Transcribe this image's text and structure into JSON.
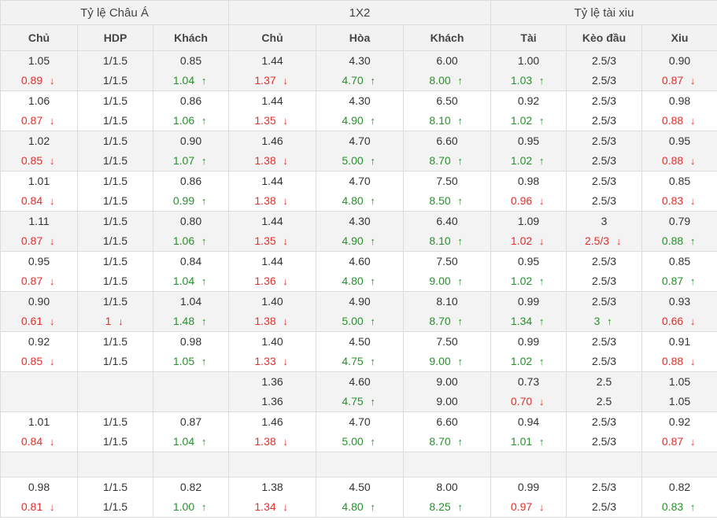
{
  "groups": [
    {
      "label": "Tỷ lệ Châu Á",
      "span": 3
    },
    {
      "label": "1X2",
      "span": 3
    },
    {
      "label": "Tỷ lệ tài xiu",
      "span": 3
    }
  ],
  "columns": [
    "Chủ",
    "HDP",
    "Khách",
    "Chủ",
    "Hòa",
    "Khách",
    "Tài",
    "Kèo đầu",
    "Xiu"
  ],
  "arrows": {
    "up": "↑",
    "down": "↓"
  },
  "colors": {
    "down": "#e0302c",
    "up": "#27912b",
    "header_bg": "#f2f2f2",
    "alt_row_bg": "#f3f3f3"
  },
  "rows": [
    {
      "cells": [
        [
          {
            "v": "1.05"
          },
          {
            "v": "0.89",
            "d": "down"
          }
        ],
        [
          {
            "v": "1/1.5"
          },
          {
            "v": "1/1.5"
          }
        ],
        [
          {
            "v": "0.85"
          },
          {
            "v": "1.04",
            "d": "up"
          }
        ],
        [
          {
            "v": "1.44"
          },
          {
            "v": "1.37",
            "d": "down"
          }
        ],
        [
          {
            "v": "4.30"
          },
          {
            "v": "4.70",
            "d": "up"
          }
        ],
        [
          {
            "v": "6.00"
          },
          {
            "v": "8.00",
            "d": "up"
          }
        ],
        [
          {
            "v": "1.00"
          },
          {
            "v": "1.03",
            "d": "up"
          }
        ],
        [
          {
            "v": "2.5/3"
          },
          {
            "v": "2.5/3"
          }
        ],
        [
          {
            "v": "0.90"
          },
          {
            "v": "0.87",
            "d": "down"
          }
        ]
      ]
    },
    {
      "cells": [
        [
          {
            "v": "1.06"
          },
          {
            "v": "0.87",
            "d": "down"
          }
        ],
        [
          {
            "v": "1/1.5"
          },
          {
            "v": "1/1.5"
          }
        ],
        [
          {
            "v": "0.86"
          },
          {
            "v": "1.06",
            "d": "up"
          }
        ],
        [
          {
            "v": "1.44"
          },
          {
            "v": "1.35",
            "d": "down"
          }
        ],
        [
          {
            "v": "4.30"
          },
          {
            "v": "4.90",
            "d": "up"
          }
        ],
        [
          {
            "v": "6.50"
          },
          {
            "v": "8.10",
            "d": "up"
          }
        ],
        [
          {
            "v": "0.92"
          },
          {
            "v": "1.02",
            "d": "up"
          }
        ],
        [
          {
            "v": "2.5/3"
          },
          {
            "v": "2.5/3"
          }
        ],
        [
          {
            "v": "0.98"
          },
          {
            "v": "0.88",
            "d": "down"
          }
        ]
      ]
    },
    {
      "cells": [
        [
          {
            "v": "1.02"
          },
          {
            "v": "0.85",
            "d": "down"
          }
        ],
        [
          {
            "v": "1/1.5"
          },
          {
            "v": "1/1.5"
          }
        ],
        [
          {
            "v": "0.90"
          },
          {
            "v": "1.07",
            "d": "up"
          }
        ],
        [
          {
            "v": "1.46"
          },
          {
            "v": "1.38",
            "d": "down"
          }
        ],
        [
          {
            "v": "4.70"
          },
          {
            "v": "5.00",
            "d": "up"
          }
        ],
        [
          {
            "v": "6.60"
          },
          {
            "v": "8.70",
            "d": "up"
          }
        ],
        [
          {
            "v": "0.95"
          },
          {
            "v": "1.02",
            "d": "up"
          }
        ],
        [
          {
            "v": "2.5/3"
          },
          {
            "v": "2.5/3"
          }
        ],
        [
          {
            "v": "0.95"
          },
          {
            "v": "0.88",
            "d": "down"
          }
        ]
      ]
    },
    {
      "cells": [
        [
          {
            "v": "1.01"
          },
          {
            "v": "0.84",
            "d": "down"
          }
        ],
        [
          {
            "v": "1/1.5"
          },
          {
            "v": "1/1.5"
          }
        ],
        [
          {
            "v": "0.86"
          },
          {
            "v": "0.99",
            "d": "up"
          }
        ],
        [
          {
            "v": "1.44"
          },
          {
            "v": "1.38",
            "d": "down"
          }
        ],
        [
          {
            "v": "4.70"
          },
          {
            "v": "4.80",
            "d": "up"
          }
        ],
        [
          {
            "v": "7.50"
          },
          {
            "v": "8.50",
            "d": "up"
          }
        ],
        [
          {
            "v": "0.98"
          },
          {
            "v": "0.96",
            "d": "down"
          }
        ],
        [
          {
            "v": "2.5/3"
          },
          {
            "v": "2.5/3"
          }
        ],
        [
          {
            "v": "0.85"
          },
          {
            "v": "0.83",
            "d": "down"
          }
        ]
      ]
    },
    {
      "cells": [
        [
          {
            "v": "1.11"
          },
          {
            "v": "0.87",
            "d": "down"
          }
        ],
        [
          {
            "v": "1/1.5"
          },
          {
            "v": "1/1.5"
          }
        ],
        [
          {
            "v": "0.80"
          },
          {
            "v": "1.06",
            "d": "up"
          }
        ],
        [
          {
            "v": "1.44"
          },
          {
            "v": "1.35",
            "d": "down"
          }
        ],
        [
          {
            "v": "4.30"
          },
          {
            "v": "4.90",
            "d": "up"
          }
        ],
        [
          {
            "v": "6.40"
          },
          {
            "v": "8.10",
            "d": "up"
          }
        ],
        [
          {
            "v": "1.09"
          },
          {
            "v": "1.02",
            "d": "down"
          }
        ],
        [
          {
            "v": "3"
          },
          {
            "v": "2.5/3",
            "d": "down"
          }
        ],
        [
          {
            "v": "0.79"
          },
          {
            "v": "0.88",
            "d": "up"
          }
        ]
      ]
    },
    {
      "cells": [
        [
          {
            "v": "0.95"
          },
          {
            "v": "0.87",
            "d": "down"
          }
        ],
        [
          {
            "v": "1/1.5"
          },
          {
            "v": "1/1.5"
          }
        ],
        [
          {
            "v": "0.84"
          },
          {
            "v": "1.04",
            "d": "up"
          }
        ],
        [
          {
            "v": "1.44"
          },
          {
            "v": "1.36",
            "d": "down"
          }
        ],
        [
          {
            "v": "4.60"
          },
          {
            "v": "4.80",
            "d": "up"
          }
        ],
        [
          {
            "v": "7.50"
          },
          {
            "v": "9.00",
            "d": "up"
          }
        ],
        [
          {
            "v": "0.95"
          },
          {
            "v": "1.02",
            "d": "up"
          }
        ],
        [
          {
            "v": "2.5/3"
          },
          {
            "v": "2.5/3"
          }
        ],
        [
          {
            "v": "0.85"
          },
          {
            "v": "0.87",
            "d": "up"
          }
        ]
      ]
    },
    {
      "cells": [
        [
          {
            "v": "0.90"
          },
          {
            "v": "0.61",
            "d": "down"
          }
        ],
        [
          {
            "v": "1/1.5"
          },
          {
            "v": "1",
            "d": "down"
          }
        ],
        [
          {
            "v": "1.04"
          },
          {
            "v": "1.48",
            "d": "up"
          }
        ],
        [
          {
            "v": "1.40"
          },
          {
            "v": "1.38",
            "d": "down"
          }
        ],
        [
          {
            "v": "4.90"
          },
          {
            "v": "5.00",
            "d": "up"
          }
        ],
        [
          {
            "v": "8.10"
          },
          {
            "v": "8.70",
            "d": "up"
          }
        ],
        [
          {
            "v": "0.99"
          },
          {
            "v": "1.34",
            "d": "up"
          }
        ],
        [
          {
            "v": "2.5/3"
          },
          {
            "v": "3",
            "d": "up"
          }
        ],
        [
          {
            "v": "0.93"
          },
          {
            "v": "0.66",
            "d": "down"
          }
        ]
      ]
    },
    {
      "cells": [
        [
          {
            "v": "0.92"
          },
          {
            "v": "0.85",
            "d": "down"
          }
        ],
        [
          {
            "v": "1/1.5"
          },
          {
            "v": "1/1.5"
          }
        ],
        [
          {
            "v": "0.98"
          },
          {
            "v": "1.05",
            "d": "up"
          }
        ],
        [
          {
            "v": "1.40"
          },
          {
            "v": "1.33",
            "d": "down"
          }
        ],
        [
          {
            "v": "4.50"
          },
          {
            "v": "4.75",
            "d": "up"
          }
        ],
        [
          {
            "v": "7.50"
          },
          {
            "v": "9.00",
            "d": "up"
          }
        ],
        [
          {
            "v": "0.99"
          },
          {
            "v": "1.02",
            "d": "up"
          }
        ],
        [
          {
            "v": "2.5/3"
          },
          {
            "v": "2.5/3"
          }
        ],
        [
          {
            "v": "0.91"
          },
          {
            "v": "0.88",
            "d": "down"
          }
        ]
      ]
    },
    {
      "cells": [
        [],
        [],
        [],
        [
          {
            "v": "1.36"
          },
          {
            "v": "1.36"
          }
        ],
        [
          {
            "v": "4.60"
          },
          {
            "v": "4.75",
            "d": "up"
          }
        ],
        [
          {
            "v": "9.00"
          },
          {
            "v": "9.00"
          }
        ],
        [
          {
            "v": "0.73"
          },
          {
            "v": "0.70",
            "d": "down"
          }
        ],
        [
          {
            "v": "2.5"
          },
          {
            "v": "2.5"
          }
        ],
        [
          {
            "v": "1.05"
          },
          {
            "v": "1.05"
          }
        ]
      ]
    },
    {
      "cells": [
        [
          {
            "v": "1.01"
          },
          {
            "v": "0.84",
            "d": "down"
          }
        ],
        [
          {
            "v": "1/1.5"
          },
          {
            "v": "1/1.5"
          }
        ],
        [
          {
            "v": "0.87"
          },
          {
            "v": "1.04",
            "d": "up"
          }
        ],
        [
          {
            "v": "1.46"
          },
          {
            "v": "1.38",
            "d": "down"
          }
        ],
        [
          {
            "v": "4.70"
          },
          {
            "v": "5.00",
            "d": "up"
          }
        ],
        [
          {
            "v": "6.60"
          },
          {
            "v": "8.70",
            "d": "up"
          }
        ],
        [
          {
            "v": "0.94"
          },
          {
            "v": "1.01",
            "d": "up"
          }
        ],
        [
          {
            "v": "2.5/3"
          },
          {
            "v": "2.5/3"
          }
        ],
        [
          {
            "v": "0.92"
          },
          {
            "v": "0.87",
            "d": "down"
          }
        ]
      ]
    },
    {
      "cells": [
        [],
        [],
        [],
        [],
        [],
        [],
        [],
        [],
        []
      ],
      "blank": true
    },
    {
      "cells": [
        [
          {
            "v": "0.98"
          },
          {
            "v": "0.81",
            "d": "down"
          }
        ],
        [
          {
            "v": "1/1.5"
          },
          {
            "v": "1/1.5"
          }
        ],
        [
          {
            "v": "0.82"
          },
          {
            "v": "1.00",
            "d": "up"
          }
        ],
        [
          {
            "v": "1.38"
          },
          {
            "v": "1.34",
            "d": "down"
          }
        ],
        [
          {
            "v": "4.50"
          },
          {
            "v": "4.80",
            "d": "up"
          }
        ],
        [
          {
            "v": "8.00"
          },
          {
            "v": "8.25",
            "d": "up"
          }
        ],
        [
          {
            "v": "0.99"
          },
          {
            "v": "0.97",
            "d": "down"
          }
        ],
        [
          {
            "v": "2.5/3"
          },
          {
            "v": "2.5/3"
          }
        ],
        [
          {
            "v": "0.82"
          },
          {
            "v": "0.83",
            "d": "up"
          }
        ]
      ]
    }
  ]
}
